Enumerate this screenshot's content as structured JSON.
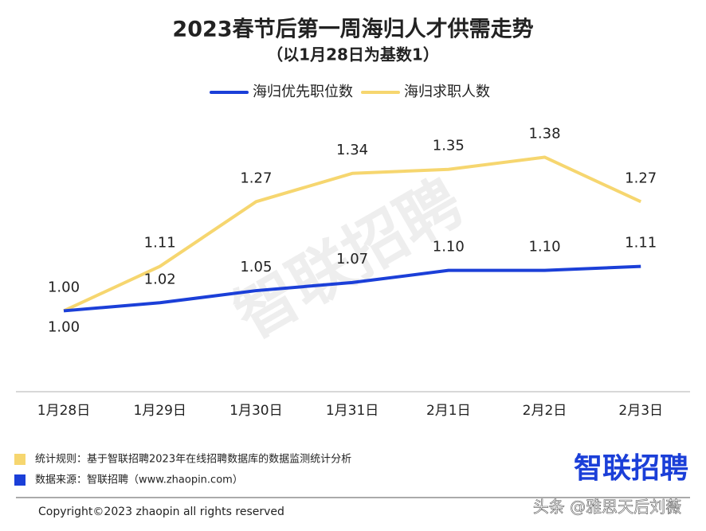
{
  "chart_data": {
    "type": "line",
    "title": "2023春节后第一周海归人才供需走势",
    "subtitle": "（以1月28日为基数1）",
    "categories": [
      "1月28日",
      "1月29日",
      "1月30日",
      "1月31日",
      "2月1日",
      "2月2日",
      "2月3日"
    ],
    "series": [
      {
        "name": "海归优先职位数",
        "color": "#1b3fd8",
        "values": [
          1.0,
          1.02,
          1.05,
          1.07,
          1.1,
          1.1,
          1.11
        ],
        "value_labels": [
          "1.00",
          "1.02",
          "1.05",
          "1.07",
          "1.10",
          "1.10",
          "1.11"
        ]
      },
      {
        "name": "海归求职人数",
        "color": "#f6d66f",
        "values": [
          1.0,
          1.11,
          1.27,
          1.34,
          1.35,
          1.38,
          1.27
        ],
        "value_labels": [
          "1.00",
          "1.11",
          "1.27",
          "1.34",
          "1.35",
          "1.38",
          "1.27"
        ]
      }
    ],
    "ylim": [
      0.8,
      1.7
    ],
    "grid": false,
    "watermark": "智联招聘"
  },
  "footer": {
    "notes": [
      {
        "color": "#f6d66f",
        "text": "统计规则：基于智联招聘2023年在线招聘数据库的数据监测统计分析"
      },
      {
        "color": "#1b3fd8",
        "text": "数据来源：智联招聘（www.zhaopin.com）"
      }
    ],
    "logo": "智联招聘",
    "copyright": "Copyright©2023 zhaopin all rights reserved",
    "overlay": "头条 @雅思天后刘薇"
  }
}
